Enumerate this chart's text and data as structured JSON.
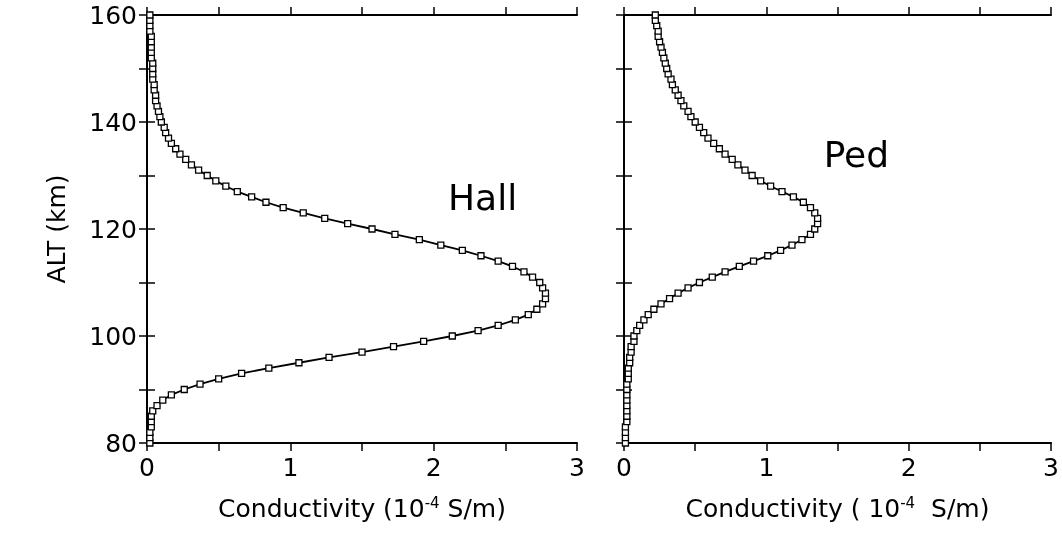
{
  "chart_data": [
    {
      "type": "line",
      "xlabel": "Conductivity (10$^{-4}$ S/m)",
      "ylabel": "ALT (km)",
      "xlim": [
        0,
        3
      ],
      "xticks": [
        0,
        {
          "value": 0.5,
          "label": null
        },
        1,
        {
          "value": 1.5,
          "label": null
        },
        2,
        {
          "value": 2.5,
          "label": null
        },
        3
      ],
      "ylim": [
        80,
        160
      ],
      "yticks": [
        80,
        {
          "value": 90,
          "label": null
        },
        100,
        {
          "value": 110,
          "label": null
        },
        120,
        {
          "value": 130,
          "label": null
        },
        140,
        {
          "value": 150,
          "label": null
        },
        160
      ],
      "grid": false,
      "legend": false,
      "marker": "square",
      "line_style": "solid",
      "series": [
        {
          "name": "Hall",
          "color": "#000000",
          "x": [
            0.02,
            0.02,
            0.02,
            0.03,
            0.03,
            0.03,
            0.04,
            0.07,
            0.11,
            0.17,
            0.26,
            0.37,
            0.5,
            0.66,
            0.85,
            1.06,
            1.27,
            1.5,
            1.72,
            1.93,
            2.13,
            2.31,
            2.45,
            2.57,
            2.66,
            2.72,
            2.76,
            2.78,
            2.78,
            2.76,
            2.74,
            2.69,
            2.63,
            2.55,
            2.45,
            2.33,
            2.2,
            2.05,
            1.9,
            1.73,
            1.57,
            1.4,
            1.24,
            1.09,
            0.95,
            0.83,
            0.73,
            0.63,
            0.55,
            0.48,
            0.42,
            0.36,
            0.31,
            0.27,
            0.23,
            0.2,
            0.17,
            0.15,
            0.13,
            0.12,
            0.1,
            0.09,
            0.08,
            0.07,
            0.06,
            0.06,
            0.05,
            0.05,
            0.04,
            0.04,
            0.04,
            0.04,
            0.03,
            0.03,
            0.03,
            0.03,
            0.03,
            0.02,
            0.02,
            0.02,
            0.02
          ],
          "values": [
            80,
            81,
            82,
            83,
            84,
            85,
            86,
            87,
            88,
            89,
            90,
            91,
            92,
            93,
            94,
            95,
            96,
            97,
            98,
            99,
            100,
            101,
            102,
            103,
            104,
            105,
            106,
            107,
            108,
            109,
            110,
            111,
            112,
            113,
            114,
            115,
            116,
            117,
            118,
            119,
            120,
            121,
            122,
            123,
            124,
            125,
            126,
            127,
            128,
            129,
            130,
            131,
            132,
            133,
            134,
            135,
            136,
            137,
            138,
            139,
            140,
            141,
            142,
            143,
            144,
            145,
            146,
            147,
            148,
            149,
            150,
            151,
            152,
            153,
            154,
            155,
            156,
            157,
            158,
            159,
            160
          ]
        }
      ]
    },
    {
      "type": "line",
      "xlabel": "Conductivity ( 10$^{-4}$  S/m)",
      "xlim": [
        0,
        3
      ],
      "xticks": [
        0,
        {
          "value": 0.5,
          "label": null
        },
        1,
        {
          "value": 1.5,
          "label": null
        },
        2,
        {
          "value": 2.5,
          "label": null
        },
        3
      ],
      "ylim": [
        80,
        160
      ],
      "yticks": [
        80,
        {
          "value": 90,
          "label": null
        },
        100,
        {
          "value": 110,
          "label": null
        },
        120,
        {
          "value": 130,
          "label": null
        },
        140,
        {
          "value": 150,
          "label": null
        },
        160
      ],
      "tick_labels": "x",
      "grid": false,
      "legend": false,
      "marker": "square",
      "line_style": "solid",
      "series": [
        {
          "name": "Ped",
          "color": "#000000",
          "x": [
            0.01,
            0.01,
            0.01,
            0.01,
            0.02,
            0.02,
            0.02,
            0.02,
            0.02,
            0.02,
            0.02,
            0.02,
            0.03,
            0.03,
            0.03,
            0.04,
            0.04,
            0.05,
            0.05,
            0.07,
            0.07,
            0.09,
            0.11,
            0.14,
            0.17,
            0.21,
            0.26,
            0.32,
            0.38,
            0.45,
            0.53,
            0.62,
            0.71,
            0.81,
            0.91,
            1.01,
            1.1,
            1.18,
            1.25,
            1.31,
            1.34,
            1.36,
            1.36,
            1.34,
            1.31,
            1.26,
            1.19,
            1.11,
            1.03,
            0.96,
            0.9,
            0.85,
            0.8,
            0.76,
            0.71,
            0.67,
            0.63,
            0.59,
            0.56,
            0.53,
            0.5,
            0.47,
            0.45,
            0.42,
            0.4,
            0.38,
            0.36,
            0.34,
            0.33,
            0.31,
            0.3,
            0.29,
            0.28,
            0.27,
            0.26,
            0.25,
            0.24,
            0.24,
            0.23,
            0.22,
            0.22
          ],
          "values": [
            80,
            81,
            82,
            83,
            84,
            85,
            86,
            87,
            88,
            89,
            90,
            91,
            92,
            93,
            94,
            95,
            96,
            97,
            98,
            99,
            100,
            101,
            102,
            103,
            104,
            105,
            106,
            107,
            108,
            109,
            110,
            111,
            112,
            113,
            114,
            115,
            116,
            117,
            118,
            119,
            120,
            121,
            122,
            123,
            124,
            125,
            126,
            127,
            128,
            129,
            130,
            131,
            132,
            133,
            134,
            135,
            136,
            137,
            138,
            139,
            140,
            141,
            142,
            143,
            144,
            145,
            146,
            147,
            148,
            149,
            150,
            151,
            152,
            153,
            154,
            155,
            156,
            157,
            158,
            159,
            160
          ]
        }
      ]
    }
  ]
}
